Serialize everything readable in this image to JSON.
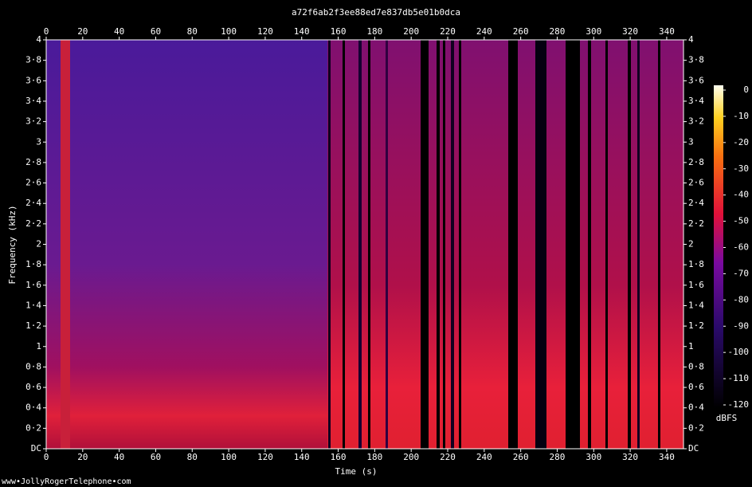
{
  "chart_data": {
    "type": "spectrogram",
    "title": "a72f6ab2f3ee88ed7e837db5e01b0dca",
    "x_label": "Time (s)",
    "y_label": "Frequency (kHz)",
    "xlim": [
      0,
      349.2
    ],
    "xticks": [
      0,
      20,
      40,
      60,
      80,
      100,
      120,
      140,
      160,
      180,
      200,
      220,
      240,
      260,
      280,
      300,
      320,
      340
    ],
    "ylim": [
      0,
      4
    ],
    "yticks": [
      {
        "value": 0,
        "label": "DC"
      },
      {
        "value": 0.2,
        "label": "0·2"
      },
      {
        "value": 0.4,
        "label": "0·4"
      },
      {
        "value": 0.6,
        "label": "0·6"
      },
      {
        "value": 0.8,
        "label": "0·8"
      },
      1,
      {
        "value": 1.2,
        "label": "1·2"
      },
      {
        "value": 1.4,
        "label": "1·4"
      },
      {
        "value": 1.6,
        "label": "1·6"
      },
      {
        "value": 1.8,
        "label": "1·8"
      },
      2,
      {
        "value": 2.2,
        "label": "2·2"
      },
      {
        "value": 2.4,
        "label": "2·4"
      },
      {
        "value": 2.6,
        "label": "2·6"
      },
      {
        "value": 2.8,
        "label": "2·8"
      },
      3,
      {
        "value": 3.2,
        "label": "3·2"
      },
      {
        "value": 3.4,
        "label": "3·4"
      },
      {
        "value": 3.6,
        "label": "3·6"
      },
      {
        "value": 3.8,
        "label": "3·8"
      },
      4
    ],
    "colorbar": {
      "label": "dBFS",
      "lim": [
        -120,
        0
      ],
      "ticks": [
        0,
        -10,
        -20,
        -30,
        -40,
        -50,
        -60,
        -70,
        -80,
        -90,
        -100,
        -110,
        -120
      ]
    }
  },
  "footer": "www•JollyRogerTelephone•com"
}
